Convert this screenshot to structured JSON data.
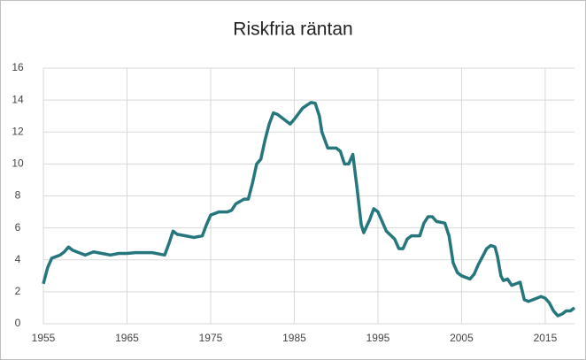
{
  "chart_data": {
    "type": "line",
    "title": "Riskfria räntan",
    "x": [
      1955,
      1955.5,
      1956,
      1957,
      1957.5,
      1958,
      1958.5,
      1959,
      1960,
      1961,
      1962,
      1963,
      1964,
      1965,
      1966,
      1967,
      1968,
      1969,
      1969.5,
      1970,
      1970.5,
      1971,
      1972,
      1973,
      1974,
      1974.5,
      1975,
      1976,
      1977,
      1977.5,
      1978,
      1979,
      1979.5,
      1980,
      1980.5,
      1981,
      1981.5,
      1982,
      1982.5,
      1983,
      1984,
      1984.5,
      1985,
      1986,
      1987,
      1987.5,
      1988,
      1988.3,
      1989,
      1990,
      1990.5,
      1991,
      1991.5,
      1992,
      1992.5,
      1993,
      1993.3,
      1994,
      1994.5,
      1995,
      1996,
      1997,
      1997.5,
      1998,
      1998.5,
      1999,
      2000,
      2000.5,
      2001,
      2001.5,
      2002,
      2003,
      2003.5,
      2004,
      2004.5,
      2005,
      2006,
      2006.5,
      2007,
      2007.5,
      2008,
      2008.5,
      2009,
      2009.3,
      2009.7,
      2010,
      2010.5,
      2011,
      2012,
      2012.5,
      2013,
      2014,
      2014.5,
      2015,
      2015.5,
      2016,
      2016.5,
      2017,
      2017.5,
      2018,
      2018.5
    ],
    "series": [
      {
        "name": "Riskfria räntan",
        "color": "#26777d",
        "values": [
          2.5,
          3.5,
          4.1,
          4.3,
          4.5,
          4.8,
          4.6,
          4.5,
          4.3,
          4.5,
          4.4,
          4.3,
          4.4,
          4.4,
          4.45,
          4.45,
          4.45,
          4.35,
          4.3,
          5.0,
          5.8,
          5.6,
          5.5,
          5.4,
          5.5,
          6.2,
          6.8,
          7.0,
          7.0,
          7.1,
          7.5,
          7.8,
          7.8,
          8.8,
          10.0,
          10.3,
          11.5,
          12.5,
          13.2,
          13.1,
          12.7,
          12.5,
          12.8,
          13.5,
          13.85,
          13.8,
          13.0,
          12.0,
          11.0,
          11.0,
          10.8,
          10.0,
          10.0,
          10.6,
          8.5,
          6.2,
          5.7,
          6.5,
          7.2,
          7.0,
          5.8,
          5.3,
          4.7,
          4.7,
          5.3,
          5.5,
          5.5,
          6.3,
          6.7,
          6.7,
          6.4,
          6.3,
          5.5,
          3.8,
          3.2,
          3.0,
          2.8,
          3.1,
          3.7,
          4.2,
          4.7,
          4.9,
          4.8,
          4.2,
          3.0,
          2.7,
          2.8,
          2.4,
          2.6,
          1.5,
          1.4,
          1.6,
          1.7,
          1.6,
          1.3,
          0.8,
          0.5,
          0.6,
          0.8,
          0.8,
          1.0
        ]
      }
    ],
    "xlim": [
      1955,
      2018.5
    ],
    "xticks": [
      1955,
      1965,
      1975,
      1985,
      1995,
      2005,
      2015
    ],
    "ylim": [
      0,
      16
    ],
    "yticks": [
      0,
      2,
      4,
      6,
      8,
      10,
      12,
      14,
      16
    ],
    "grid": true
  }
}
